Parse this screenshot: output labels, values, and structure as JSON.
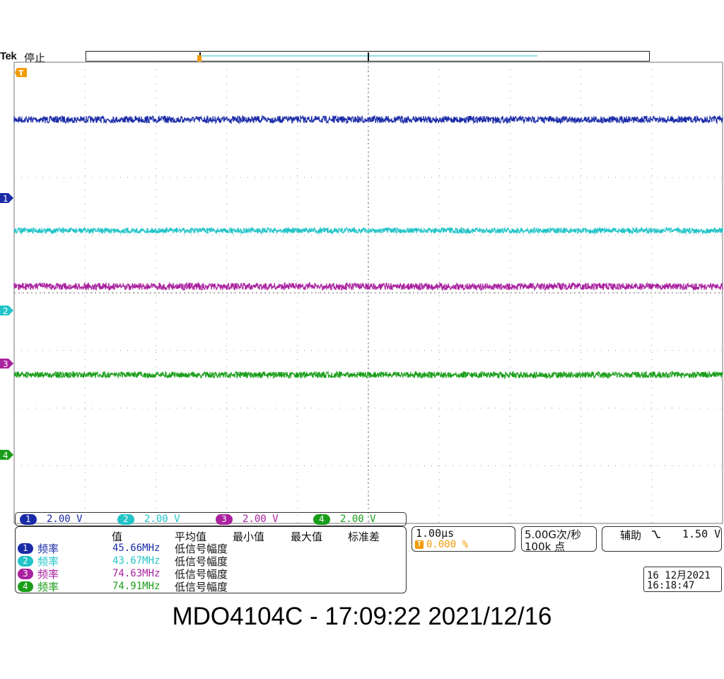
{
  "header": {
    "brand": "Tek",
    "run_state": "停止"
  },
  "colors": {
    "ch1": "#1a2ba8",
    "ch2": "#22c4c8",
    "ch3": "#a9219f",
    "ch4": "#1a9e1a",
    "trigger": "#f29b00",
    "grid": "#9a9a9a"
  },
  "markers": {
    "trigger": "T",
    "ch1": "1",
    "ch2": "2",
    "ch3": "3",
    "ch4": "4"
  },
  "channels": [
    {
      "num": "1",
      "scale": "2.00 V"
    },
    {
      "num": "2",
      "scale": "2.00 V"
    },
    {
      "num": "3",
      "scale": "2.00 V"
    },
    {
      "num": "4",
      "scale": "2.00 V"
    }
  ],
  "measurements": {
    "headers": [
      "值",
      "平均值",
      "最小值",
      "最大值",
      "标准差"
    ],
    "rows": [
      {
        "num": "1",
        "type": "频率",
        "value": "45.66MHz",
        "note": "低信号幅度"
      },
      {
        "num": "2",
        "type": "频率",
        "value": "43.67MHz",
        "note": "低信号幅度"
      },
      {
        "num": "3",
        "type": "频率",
        "value": "74.63MHz",
        "note": "低信号幅度"
      },
      {
        "num": "4",
        "type": "频率",
        "value": "74.91MHz",
        "note": "低信号幅度"
      }
    ]
  },
  "timebase": {
    "scale": "1.00µs",
    "trigger_pos": "0.000 %"
  },
  "acquisition": {
    "rate": "5.00G次/秒",
    "points": "100k 点"
  },
  "trigger": {
    "source": "辅助",
    "slope_icon": "falling-edge-icon",
    "level": "1.50 V"
  },
  "datetime": {
    "date": "16 12月2021",
    "time": "16:18:47"
  },
  "caption": "MDO4104C - 17:09:22   2021/12/16"
}
